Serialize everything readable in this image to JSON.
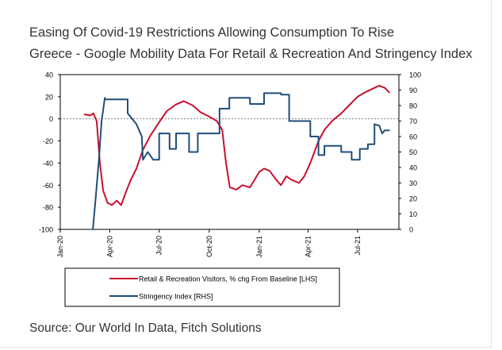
{
  "chart_data": {
    "type": "line",
    "title": "Easing Of Covid-19 Restrictions Allowing Consumption To Rise",
    "subtitle": "Greece - Google Mobility Data For Retail & Recreation And Stringency Index",
    "source": "Source: Our World In Data, Fitch Solutions",
    "x_ticks": [
      "Jan-20",
      "Apr-20",
      "Jul-20",
      "Oct-20",
      "Jan-21",
      "Apr-21",
      "Jul-21"
    ],
    "y_left": {
      "min": -100,
      "max": 40,
      "ticks": [
        "40",
        "20",
        "0",
        "-20",
        "-40",
        "-60",
        "-80",
        "-100"
      ]
    },
    "y_right": {
      "min": 0,
      "max": 100,
      "ticks": [
        "100",
        "90",
        "80",
        "70",
        "60",
        "50",
        "40",
        "30",
        "20",
        "10",
        "0"
      ]
    },
    "zero_line": true,
    "legend_position": "bottom",
    "series": [
      {
        "name": "Retail & Recreation Visitors, % chg From Baseline [LHS]",
        "axis": "left",
        "color": "#c8102e",
        "points": [
          [
            "2020-02-15",
            4
          ],
          [
            "2020-02-25",
            3
          ],
          [
            "2020-03-02",
            5
          ],
          [
            "2020-03-08",
            -2
          ],
          [
            "2020-03-14",
            -40
          ],
          [
            "2020-03-20",
            -65
          ],
          [
            "2020-03-28",
            -76
          ],
          [
            "2020-04-05",
            -78
          ],
          [
            "2020-04-14",
            -74
          ],
          [
            "2020-04-22",
            -78
          ],
          [
            "2020-05-01",
            -66
          ],
          [
            "2020-05-10",
            -55
          ],
          [
            "2020-05-20",
            -45
          ],
          [
            "2020-06-01",
            -28
          ],
          [
            "2020-06-15",
            -15
          ],
          [
            "2020-07-01",
            -3
          ],
          [
            "2020-07-15",
            7
          ],
          [
            "2020-08-01",
            13
          ],
          [
            "2020-08-15",
            16
          ],
          [
            "2020-09-01",
            12
          ],
          [
            "2020-09-15",
            6
          ],
          [
            "2020-10-01",
            2
          ],
          [
            "2020-10-15",
            -2
          ],
          [
            "2020-10-25",
            -10
          ],
          [
            "2020-11-01",
            -40
          ],
          [
            "2020-11-08",
            -62
          ],
          [
            "2020-11-20",
            -64
          ],
          [
            "2020-12-01",
            -60
          ],
          [
            "2020-12-15",
            -62
          ],
          [
            "2021-01-01",
            -48
          ],
          [
            "2021-01-10",
            -45
          ],
          [
            "2021-01-20",
            -47
          ],
          [
            "2021-02-01",
            -55
          ],
          [
            "2021-02-10",
            -60
          ],
          [
            "2021-02-20",
            -52
          ],
          [
            "2021-03-01",
            -55
          ],
          [
            "2021-03-15",
            -58
          ],
          [
            "2021-03-25",
            -52
          ],
          [
            "2021-04-05",
            -40
          ],
          [
            "2021-04-20",
            -20
          ],
          [
            "2021-05-01",
            -10
          ],
          [
            "2021-05-15",
            -2
          ],
          [
            "2021-06-01",
            5
          ],
          [
            "2021-06-15",
            12
          ],
          [
            "2021-07-01",
            20
          ],
          [
            "2021-07-15",
            24
          ],
          [
            "2021-08-01",
            28
          ],
          [
            "2021-08-10",
            30
          ],
          [
            "2021-08-20",
            28
          ],
          [
            "2021-08-28",
            24
          ]
        ]
      },
      {
        "name": "Stringency Index [RHS]",
        "axis": "right",
        "color": "#1f4e79",
        "points": [
          [
            "2020-03-01",
            0
          ],
          [
            "2020-03-06",
            20
          ],
          [
            "2020-03-12",
            45
          ],
          [
            "2020-03-17",
            70
          ],
          [
            "2020-03-23",
            85
          ],
          [
            "2020-03-23",
            84
          ],
          [
            "2020-05-04",
            84
          ],
          [
            "2020-05-04",
            75
          ],
          [
            "2020-05-20",
            68
          ],
          [
            "2020-05-30",
            60
          ],
          [
            "2020-06-01",
            45
          ],
          [
            "2020-06-10",
            50
          ],
          [
            "2020-06-20",
            45
          ],
          [
            "2020-07-01",
            45
          ],
          [
            "2020-07-01",
            62
          ],
          [
            "2020-07-20",
            62
          ],
          [
            "2020-07-20",
            52
          ],
          [
            "2020-08-01",
            52
          ],
          [
            "2020-08-01",
            62
          ],
          [
            "2020-08-25",
            62
          ],
          [
            "2020-08-25",
            50
          ],
          [
            "2020-09-10",
            50
          ],
          [
            "2020-09-10",
            62
          ],
          [
            "2020-10-20",
            62
          ],
          [
            "2020-10-20",
            78
          ],
          [
            "2020-11-07",
            78
          ],
          [
            "2020-11-07",
            85
          ],
          [
            "2020-12-15",
            85
          ],
          [
            "2020-12-15",
            81
          ],
          [
            "2021-01-10",
            81
          ],
          [
            "2021-01-10",
            88
          ],
          [
            "2021-02-10",
            88
          ],
          [
            "2021-02-10",
            87
          ],
          [
            "2021-02-25",
            87
          ],
          [
            "2021-02-25",
            70
          ],
          [
            "2021-04-05",
            70
          ],
          [
            "2021-04-05",
            60
          ],
          [
            "2021-04-20",
            60
          ],
          [
            "2021-04-20",
            48
          ],
          [
            "2021-05-01",
            48
          ],
          [
            "2021-05-01",
            54
          ],
          [
            "2021-06-01",
            54
          ],
          [
            "2021-06-01",
            50
          ],
          [
            "2021-06-20",
            50
          ],
          [
            "2021-06-20",
            45
          ],
          [
            "2021-07-05",
            45
          ],
          [
            "2021-07-05",
            52
          ],
          [
            "2021-07-20",
            52
          ],
          [
            "2021-07-20",
            55
          ],
          [
            "2021-08-01",
            55
          ],
          [
            "2021-08-01",
            68
          ],
          [
            "2021-08-10",
            67
          ],
          [
            "2021-08-15",
            62
          ],
          [
            "2021-08-20",
            64
          ],
          [
            "2021-08-28",
            64
          ]
        ]
      }
    ]
  }
}
